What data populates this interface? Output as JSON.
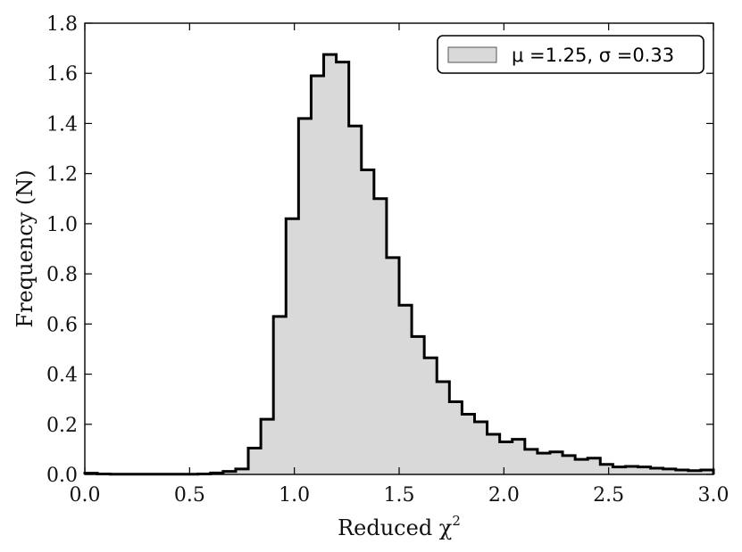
{
  "chart_data": {
    "type": "histogram",
    "xlabel": "Reduced χ",
    "xlabel_superscript": "2",
    "ylabel": "Frequency (N)",
    "xlim": [
      0.0,
      3.0
    ],
    "ylim": [
      0.0,
      1.8
    ],
    "xticks": [
      "0.0",
      "0.5",
      "1.0",
      "1.5",
      "2.0",
      "2.5",
      "3.0"
    ],
    "yticks": [
      "0.0",
      "0.2",
      "0.4",
      "0.6",
      "0.8",
      "1.0",
      "1.2",
      "1.4",
      "1.6",
      "1.8"
    ],
    "grid": false,
    "legend_position": "top-right",
    "colors": {
      "fill": "#d9d9d9",
      "edge": "#000000"
    },
    "series": [
      {
        "legend_label": "μ =1.25, σ =0.33",
        "bin_edges": [
          0.0,
          0.06,
          0.12,
          0.18,
          0.24,
          0.3,
          0.36,
          0.42,
          0.48,
          0.54,
          0.6,
          0.66,
          0.72,
          0.78,
          0.84,
          0.9,
          0.96,
          1.02,
          1.08,
          1.14,
          1.2,
          1.26,
          1.32,
          1.38,
          1.44,
          1.5,
          1.56,
          1.62,
          1.68,
          1.74,
          1.8,
          1.86,
          1.92,
          1.98,
          2.04,
          2.1,
          2.16,
          2.22,
          2.28,
          2.34,
          2.4,
          2.46,
          2.52,
          2.58,
          2.64,
          2.7,
          2.76,
          2.82,
          2.88,
          2.94,
          3.0
        ],
        "values": [
          0.005,
          0.002,
          0.001,
          0.001,
          0.001,
          0.001,
          0.001,
          0.001,
          0.001,
          0.002,
          0.006,
          0.012,
          0.022,
          0.105,
          0.22,
          0.63,
          1.02,
          1.42,
          1.59,
          1.675,
          1.645,
          1.39,
          1.215,
          1.1,
          0.865,
          0.675,
          0.55,
          0.465,
          0.37,
          0.29,
          0.24,
          0.21,
          0.16,
          0.13,
          0.14,
          0.1,
          0.085,
          0.09,
          0.075,
          0.06,
          0.065,
          0.04,
          0.03,
          0.032,
          0.03,
          0.025,
          0.022,
          0.018,
          0.015,
          0.018
        ]
      }
    ]
  }
}
